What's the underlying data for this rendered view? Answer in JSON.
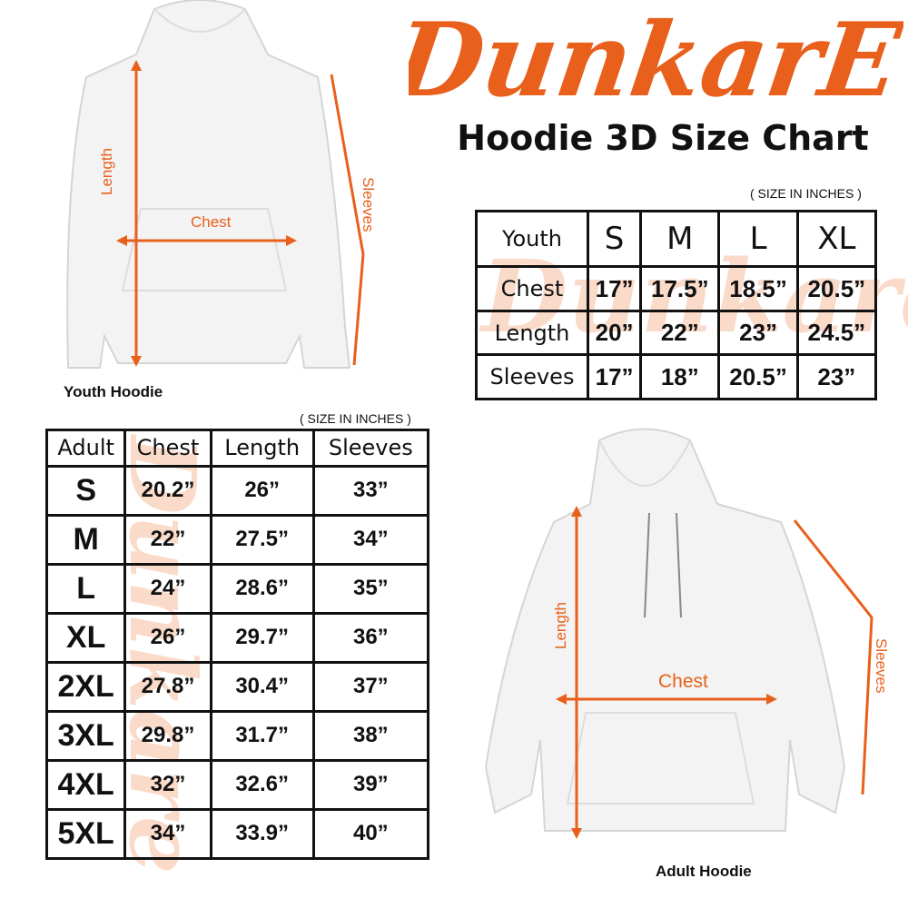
{
  "brand": {
    "logo_text": "DunkarE",
    "color": "#e8601c"
  },
  "title": "Hoodie 3D Size Chart",
  "youth_hoodie": {
    "caption": "Youth Hoodie",
    "labels": {
      "length": "Length",
      "chest": "Chest",
      "sleeves": "Sleeves"
    }
  },
  "adult_hoodie": {
    "caption": "Adult Hoodie",
    "labels": {
      "length": "Length",
      "chest": "Chest",
      "sleeves": "Sleeves"
    }
  },
  "youth_table": {
    "unit_note": "( SIZE IN INCHES )",
    "header": [
      "Youth",
      "S",
      "M",
      "L",
      "XL"
    ],
    "rows": [
      [
        "Chest",
        "17”",
        "17.5”",
        "18.5”",
        "20.5”"
      ],
      [
        "Length",
        "20”",
        "22”",
        "23”",
        "24.5”"
      ],
      [
        "Sleeves",
        "17”",
        "18”",
        "20.5”",
        "23”"
      ]
    ]
  },
  "adult_table": {
    "unit_note": "( SIZE IN INCHES )",
    "header": [
      "Adult",
      "Chest",
      "Length",
      "Sleeves"
    ],
    "rows": [
      [
        "S",
        "20.2”",
        "26”",
        "33”"
      ],
      [
        "M",
        "22”",
        "27.5”",
        "34”"
      ],
      [
        "L",
        "24”",
        "28.6”",
        "35”"
      ],
      [
        "XL",
        "26”",
        "29.7”",
        "36”"
      ],
      [
        "2XL",
        "27.8”",
        "30.4”",
        "37”"
      ],
      [
        "3XL",
        "29.8”",
        "31.7”",
        "38”"
      ],
      [
        "4XL",
        "32”",
        "32.6”",
        "39”"
      ],
      [
        "5XL",
        "34”",
        "33.9”",
        "40”"
      ]
    ]
  }
}
